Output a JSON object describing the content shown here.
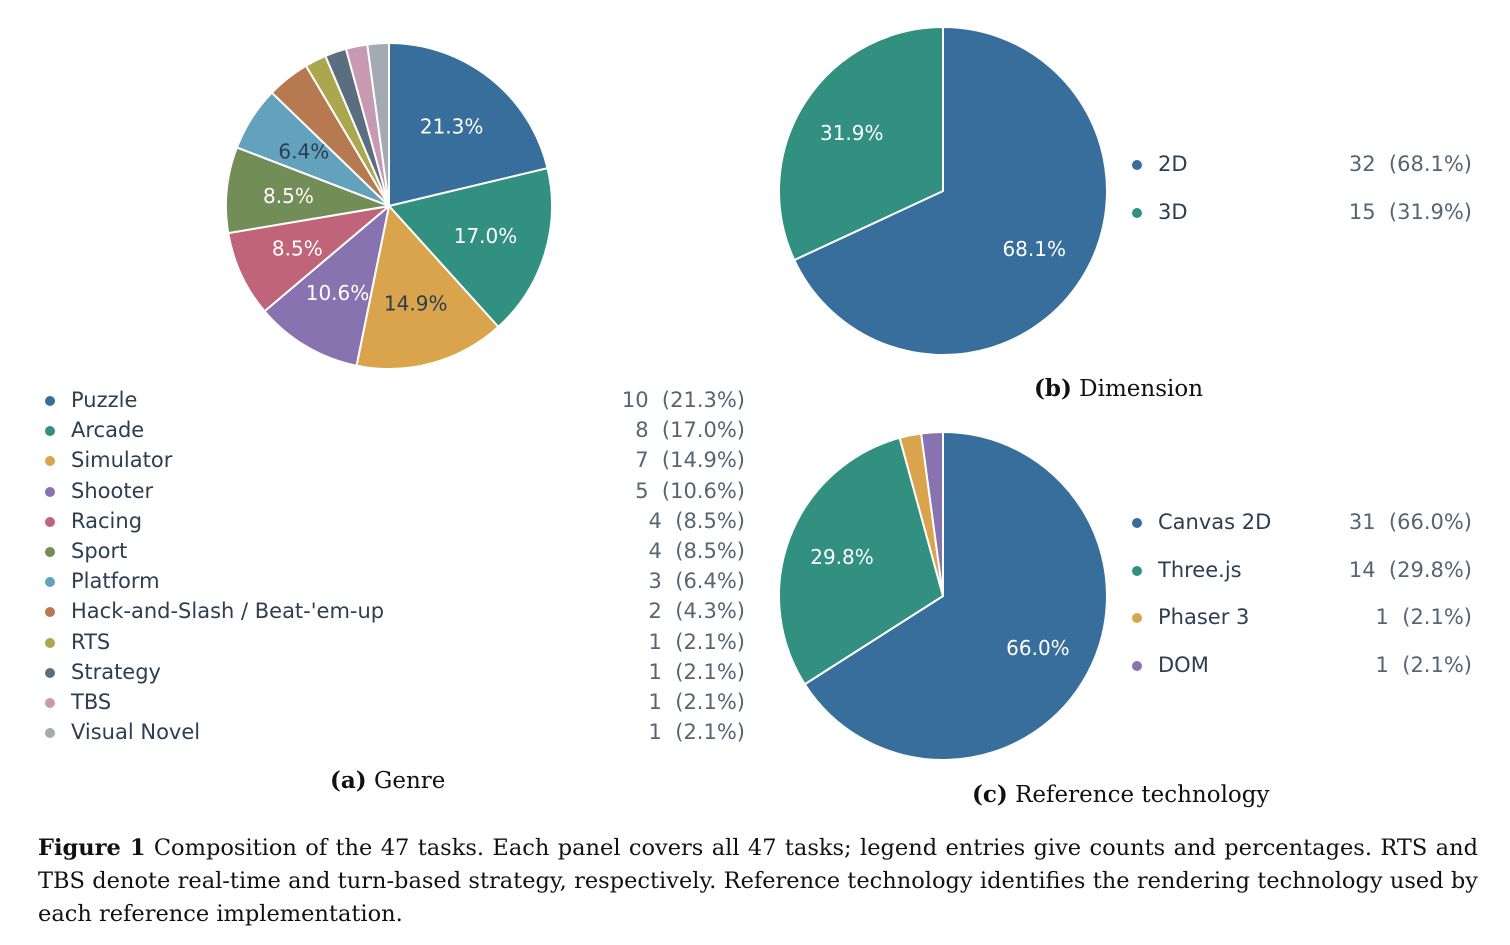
{
  "chart_data": [
    {
      "type": "pie",
      "panel_label": "(a)",
      "title": "Genre",
      "categories": [
        "Puzzle",
        "Arcade",
        "Simulator",
        "Shooter",
        "Racing",
        "Sport",
        "Platform",
        "Hack-and-Slash / Beat-'em-up",
        "RTS",
        "Strategy",
        "TBS",
        "Visual Novel"
      ],
      "values": [
        10,
        8,
        7,
        5,
        4,
        4,
        3,
        2,
        1,
        1,
        1,
        1
      ],
      "percent_labels": [
        "21.3%",
        "17.0%",
        "14.9%",
        "10.6%",
        "8.5%",
        "8.5%",
        "6.4%",
        "",
        "",
        "",
        "",
        ""
      ],
      "legend_values": [
        "10  (21.3%)",
        "8  (17.0%)",
        "7  (14.9%)",
        "5  (10.6%)",
        "4  (8.5%)",
        "4  (8.5%)",
        "3  (6.4%)",
        "2  (4.3%)",
        "1  (2.1%)",
        "1  (2.1%)",
        "1  (2.1%)",
        "1  (2.1%)"
      ],
      "colors": [
        "#376e9b",
        "#319080",
        "#d9a44b",
        "#8873b0",
        "#bf6479",
        "#728d58",
        "#62a2bd",
        "#b77a50",
        "#aaa74e",
        "#5b6e80",
        "#c799b2",
        "#a3aab1"
      ],
      "label_colors": [
        "#ffffff",
        "#ffffff",
        "#2c3e50",
        "#ffffff",
        "#ffffff",
        "#ffffff",
        "#2c3e50",
        "",
        "",
        "",
        "",
        ""
      ]
    },
    {
      "type": "pie",
      "panel_label": "(b)",
      "title": "Dimension",
      "categories": [
        "2D",
        "3D"
      ],
      "values": [
        32,
        15
      ],
      "percent_labels": [
        "68.1%",
        "31.9%"
      ],
      "legend_values": [
        "32  (68.1%)",
        "15  (31.9%)"
      ],
      "colors": [
        "#376e9b",
        "#319080"
      ],
      "label_colors": [
        "#ffffff",
        "#ffffff"
      ]
    },
    {
      "type": "pie",
      "panel_label": "(c)",
      "title": "Reference technology",
      "categories": [
        "Canvas 2D",
        "Three.js",
        "Phaser 3",
        "DOM"
      ],
      "values": [
        31,
        14,
        1,
        1
      ],
      "percent_labels": [
        "66.0%",
        "29.8%",
        "",
        ""
      ],
      "legend_values": [
        "31  (66.0%)",
        "14  (29.8%)",
        "1  (2.1%)",
        "1  (2.1%)"
      ],
      "colors": [
        "#376e9b",
        "#319080",
        "#d9a44b",
        "#8873b0"
      ],
      "label_colors": [
        "#ffffff",
        "#ffffff",
        "",
        ""
      ]
    }
  ],
  "figure_caption": {
    "label": "Figure 1",
    "text": " Composition of the 47 tasks. Each panel covers all 47 tasks; legend entries give counts and percentages. RTS and TBS denote real-time and turn-based strategy, respectively. Reference technology identifies the rendering technology used by each reference implementation."
  }
}
